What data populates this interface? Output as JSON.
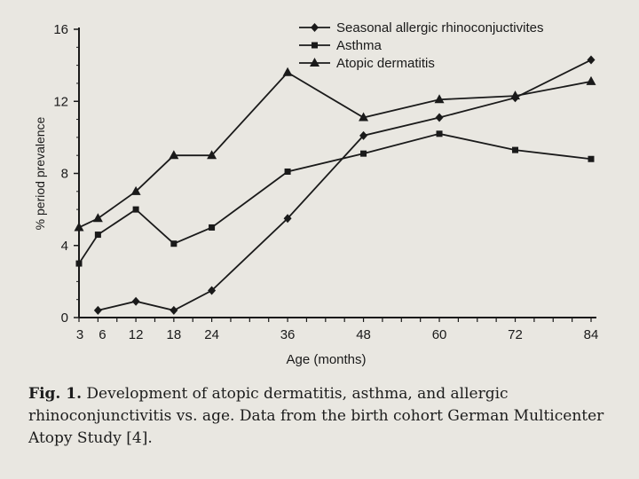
{
  "chart_data": {
    "type": "line",
    "xlabel": "Age (months)",
    "ylabel": "% period prevalence",
    "xlim": [
      3,
      84
    ],
    "ylim": [
      0,
      16
    ],
    "x_ticks": [
      3,
      6,
      12,
      18,
      24,
      36,
      48,
      60,
      72,
      84
    ],
    "y_ticks": [
      0,
      4,
      8,
      12,
      16
    ],
    "grid": false,
    "legend_position": "top-right",
    "series": [
      {
        "name": "Seasonal allergic rhinoconjuctivites",
        "marker": "diamond",
        "x": [
          6,
          12,
          18,
          24,
          36,
          48,
          60,
          72,
          84
        ],
        "y": [
          0.4,
          0.9,
          0.4,
          1.5,
          5.5,
          10.1,
          11.1,
          12.2,
          14.3
        ]
      },
      {
        "name": "Asthma",
        "marker": "square",
        "x": [
          3,
          6,
          12,
          18,
          24,
          36,
          48,
          60,
          72,
          84
        ],
        "y": [
          3.0,
          4.6,
          6.0,
          4.1,
          5.0,
          8.1,
          9.1,
          10.2,
          9.3,
          8.8
        ]
      },
      {
        "name": "Atopic dermatitis",
        "marker": "triangle",
        "x": [
          3,
          6,
          12,
          18,
          24,
          36,
          48,
          60,
          72,
          84
        ],
        "y": [
          5.0,
          5.5,
          7.0,
          9.0,
          9.0,
          13.6,
          11.1,
          12.1,
          12.3,
          13.1
        ]
      }
    ]
  },
  "caption": {
    "label": "Fig. 1.",
    "text": "Development of atopic dermatitis, asthma, and allergic rhinoconjunctivitis vs. age. Data from the birth cohort German Multicenter Atopy Study [4]."
  },
  "colors": {
    "ink": "#1a1a1a",
    "paper": "#e9e7e1"
  }
}
